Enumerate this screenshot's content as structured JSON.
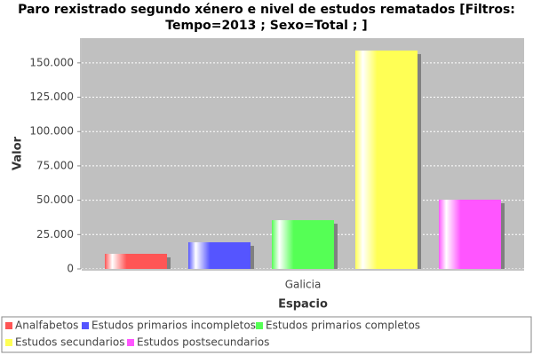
{
  "chart_data": {
    "type": "bar",
    "title": [
      "Paro rexistrado segundo xénero e nivel de estudos rematados   [Filtros:",
      "Tempo=2013 ; Sexo=Total ; ]"
    ],
    "x_label": "Espacio",
    "y_label": "Valor",
    "categories": [
      "Galicia"
    ],
    "series": [
      {
        "name": "Analfabetos",
        "color": "#ff5555",
        "values": [
          11000
        ]
      },
      {
        "name": "Estudos primarios incompletos",
        "color": "#5555ff",
        "values": [
          19400
        ]
      },
      {
        "name": "Estudos primarios completos",
        "color": "#55ff55",
        "values": [
          35500
        ]
      },
      {
        "name": "Estudos secundarios",
        "color": "#ffff55",
        "values": [
          159000
        ]
      },
      {
        "name": "Estudos postsecundarios",
        "color": "#ff55ff",
        "values": [
          50400
        ]
      }
    ],
    "ylim": [
      0,
      168000
    ],
    "yticks": [
      0,
      {
        "value": 25000,
        "label": "25.000"
      },
      {
        "value": 50000,
        "label": "50.000"
      },
      {
        "value": 75000,
        "label": "75.000"
      },
      {
        "value": 100000,
        "label": "100.000"
      },
      {
        "value": 125000,
        "label": "125.000"
      },
      {
        "value": 150000,
        "label": "150.000"
      }
    ],
    "grid": true
  }
}
